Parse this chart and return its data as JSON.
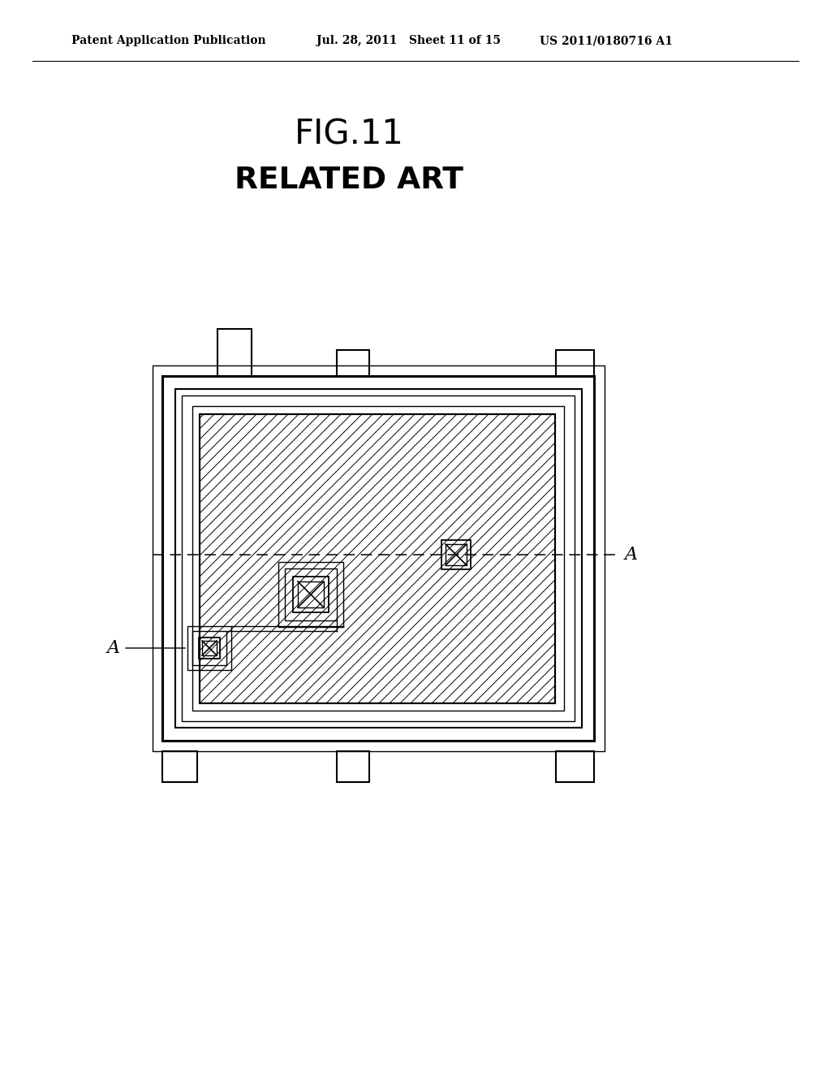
{
  "bg_color": "#ffffff",
  "text_color": "#000000",
  "header_left": "Patent Application Publication",
  "header_mid": "Jul. 28, 2011   Sheet 11 of 15",
  "header_right": "US 2011/0180716 A1",
  "fig_title": "FIG.11",
  "fig_subtitle": "RELATED ART",
  "line_color": "#000000",
  "label_A": "A"
}
